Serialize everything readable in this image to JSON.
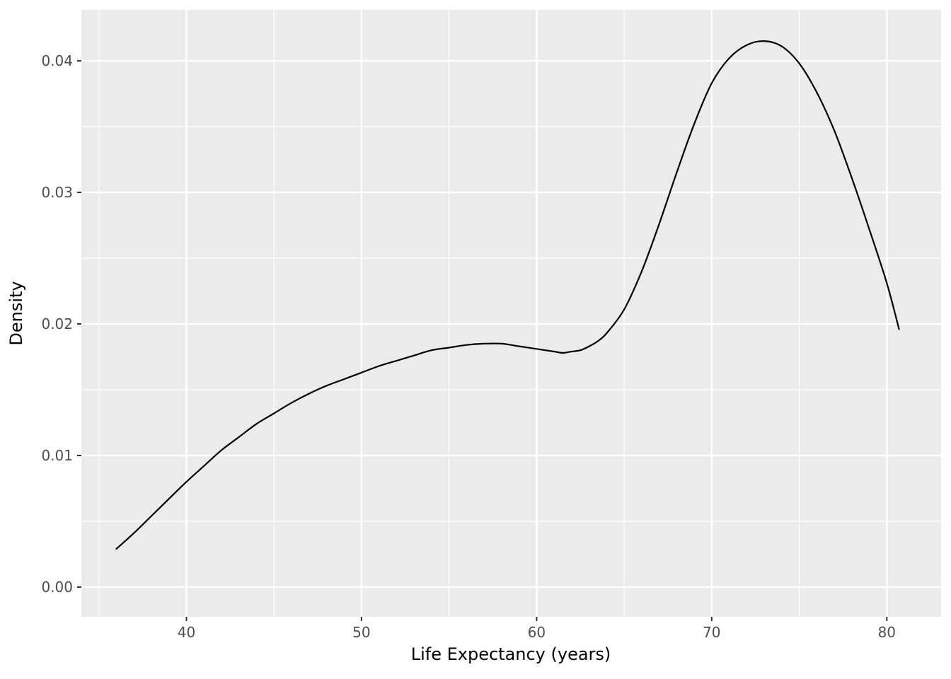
{
  "chart_data": {
    "type": "line",
    "title": "",
    "xlabel": "Life Expectancy (years)",
    "ylabel": "Density",
    "xlim": [
      34.0,
      83.1
    ],
    "ylim": [
      -0.00226,
      0.04387
    ],
    "x_ticks": [
      40,
      50,
      60,
      70,
      80
    ],
    "x_tick_labels": [
      "40",
      "50",
      "60",
      "70",
      "80"
    ],
    "y_ticks": [
      0.0,
      0.01,
      0.02,
      0.03,
      0.04
    ],
    "y_tick_labels": [
      "0.00",
      "0.01",
      "0.02",
      "0.03",
      "0.04"
    ],
    "x_minor_ticks": [
      35,
      45,
      55,
      65,
      75
    ],
    "y_minor_ticks": [
      0.005,
      0.015,
      0.025,
      0.035
    ],
    "grid": true,
    "legend": "none",
    "panel_bg": "#EBEBEB",
    "grid_color": "#FFFFFF",
    "line_color": "#000000",
    "tick_mark_color": "#333333",
    "tick_label_color": "#4D4D4D",
    "axis_title_color": "#000000",
    "series": [
      {
        "name": "density",
        "x": [
          36.0,
          37,
          38,
          39,
          40,
          41,
          42,
          43,
          44,
          45,
          46,
          47,
          48,
          49,
          50,
          51,
          52,
          53,
          54,
          55,
          56,
          57,
          58,
          59,
          60,
          61,
          61.5,
          62,
          62.5,
          63,
          63.5,
          64,
          65,
          66,
          67,
          68,
          69,
          70,
          71,
          72,
          73,
          74,
          75,
          76,
          77,
          78,
          79,
          80,
          80.7
        ],
        "y": [
          0.0029,
          0.0041,
          0.0054,
          0.0067,
          0.008,
          0.0092,
          0.0104,
          0.0114,
          0.0124,
          0.0132,
          0.014,
          0.0147,
          0.0153,
          0.0158,
          0.0163,
          0.0168,
          0.0172,
          0.0176,
          0.018,
          0.0182,
          0.0184,
          0.0185,
          0.0185,
          0.0183,
          0.0181,
          0.0179,
          0.0178,
          0.0179,
          0.018,
          0.0183,
          0.0187,
          0.0193,
          0.0211,
          0.024,
          0.0276,
          0.0315,
          0.0352,
          0.0383,
          0.0402,
          0.0412,
          0.0415,
          0.0411,
          0.0398,
          0.0376,
          0.0347,
          0.0311,
          0.0272,
          0.0231,
          0.0196
        ]
      }
    ]
  }
}
